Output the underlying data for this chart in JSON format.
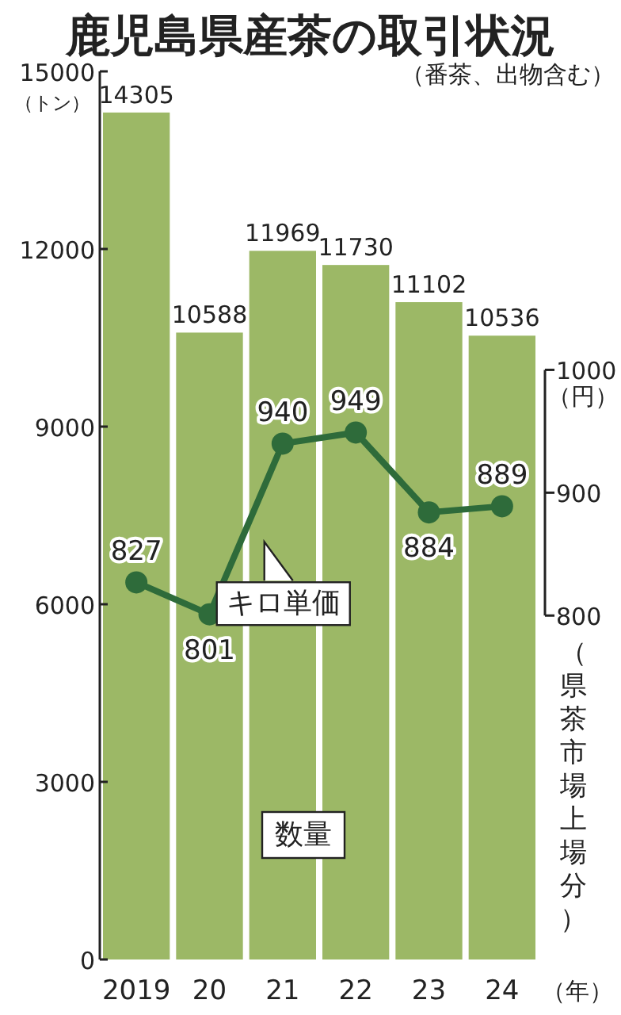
{
  "chart_data": {
    "type": "bar",
    "title": "鹿児島県産茶の取引状況",
    "subtitle": "（番茶、出物含む）",
    "ylabel": "（トン）",
    "y2label": "（円）",
    "xlabel": "（年）",
    "categories": [
      "2019",
      "20",
      "21",
      "22",
      "23",
      "24"
    ],
    "series": [
      {
        "color": "#9cb866",
        "values": [
          14305,
          10588,
          11969,
          11730,
          11102,
          10536
        ]
      },
      {
        "type": "line",
        "axis": "y2",
        "color": "#2e6b3a",
        "marker": "circle",
        "values": [
          827,
          801,
          940,
          949,
          884,
          889
        ]
      }
    ],
    "ylim": [
      0,
      15000
    ],
    "yticks": [
      0,
      3000,
      6000,
      9000,
      12000,
      15000
    ],
    "y2lim": [
      520,
      1243
    ],
    "y2ticks": [
      800,
      900,
      1000
    ],
    "data_labels": true,
    "grid": false,
    "annotations": [
      "キロ単価",
      "数量",
      "（県茶市場上場分）"
    ]
  }
}
